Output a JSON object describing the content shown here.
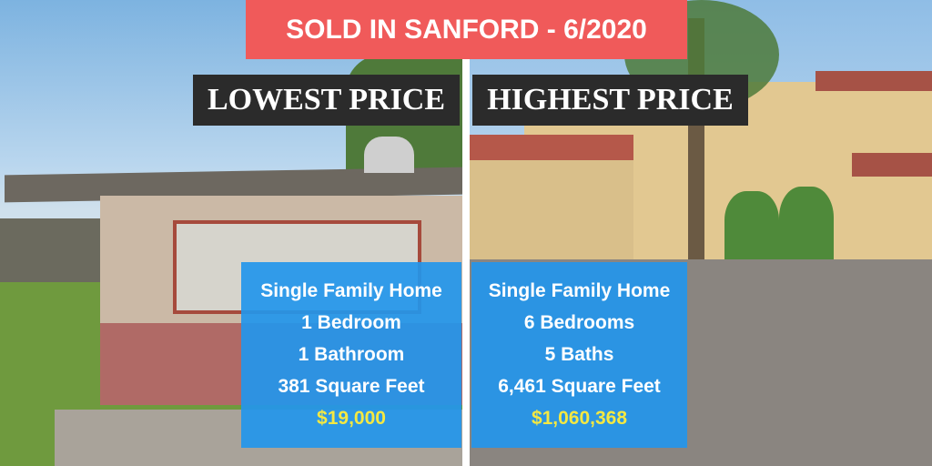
{
  "title": "SOLD IN SANFORD - 6/2020",
  "left": {
    "label": "LOWEST PRICE",
    "details": [
      "Single Family Home",
      "1 Bedroom",
      "1 Bathroom",
      "381 Square Feet"
    ],
    "price": "$19,000"
  },
  "right": {
    "label": "HIGHEST PRICE",
    "details": [
      "Single Family Home",
      "6 Bedrooms",
      "5 Baths",
      "6,461 Square Feet"
    ],
    "price": "$1,060,368"
  }
}
